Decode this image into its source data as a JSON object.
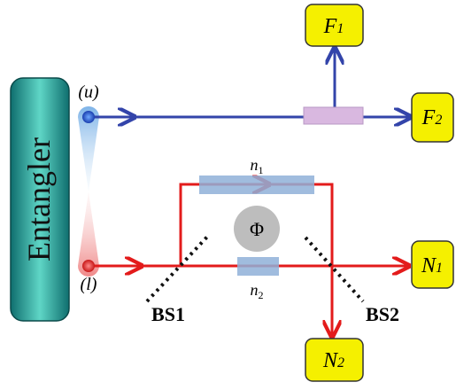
{
  "source": {
    "label": "Entangler",
    "upper_mode": "(u)",
    "lower_mode": "(l)"
  },
  "detectors": {
    "F1": {
      "symbol": "F",
      "index": "1"
    },
    "F2": {
      "symbol": "F",
      "index": "2"
    },
    "N1": {
      "symbol": "N",
      "index": "1"
    },
    "N2": {
      "symbol": "N",
      "index": "2"
    }
  },
  "elements": {
    "n1": {
      "symbol": "n",
      "index": "1"
    },
    "n2": {
      "symbol": "n",
      "index": "2"
    },
    "phase": "Φ",
    "bs1": "BS1",
    "bs2": "BS2"
  }
}
